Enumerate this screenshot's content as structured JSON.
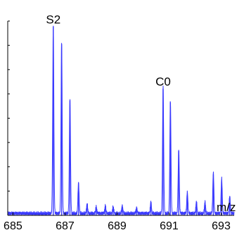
{
  "chart_data": {
    "type": "line",
    "title": "",
    "xlabel": "m/z",
    "ylabel": "",
    "xlim": [
      684.8,
      693.5
    ],
    "ylim": [
      0,
      100
    ],
    "x_ticks": [
      685,
      687,
      689,
      691,
      693
    ],
    "x_tick_labels": [
      "685",
      "687",
      "689",
      "691",
      "693"
    ],
    "y_minor_ticks": [
      12.5,
      25,
      37.5,
      50,
      62.5,
      75,
      87.5,
      100
    ],
    "grid": false,
    "line_color": "#3a3aff",
    "baseline_noise": 2.0,
    "series": [
      {
        "peaks": [
          {
            "mz": 686.55,
            "intensity": 97.0
          },
          {
            "mz": 686.87,
            "intensity": 88.0
          },
          {
            "mz": 687.19,
            "intensity": 59.0
          },
          {
            "mz": 687.52,
            "intensity": 16.0
          },
          {
            "mz": 687.85,
            "intensity": 5.0
          },
          {
            "mz": 688.2,
            "intensity": 3.5
          },
          {
            "mz": 688.55,
            "intensity": 4.0
          },
          {
            "mz": 688.85,
            "intensity": 3.5
          },
          {
            "mz": 689.2,
            "intensity": 4.0
          },
          {
            "mz": 689.75,
            "intensity": 3.0
          },
          {
            "mz": 690.3,
            "intensity": 6.0
          },
          {
            "mz": 690.77,
            "intensity": 65.0
          },
          {
            "mz": 691.05,
            "intensity": 58.0
          },
          {
            "mz": 691.37,
            "intensity": 33.0
          },
          {
            "mz": 691.7,
            "intensity": 11.0
          },
          {
            "mz": 692.05,
            "intensity": 6.0
          },
          {
            "mz": 692.38,
            "intensity": 6.0
          },
          {
            "mz": 692.7,
            "intensity": 21.0
          },
          {
            "mz": 693.02,
            "intensity": 18.0
          },
          {
            "mz": 693.33,
            "intensity": 9.0
          }
        ]
      }
    ],
    "annotations": [
      {
        "text": "S2",
        "mz": 686.55
      },
      {
        "text": "C0",
        "mz": 690.77
      }
    ]
  }
}
